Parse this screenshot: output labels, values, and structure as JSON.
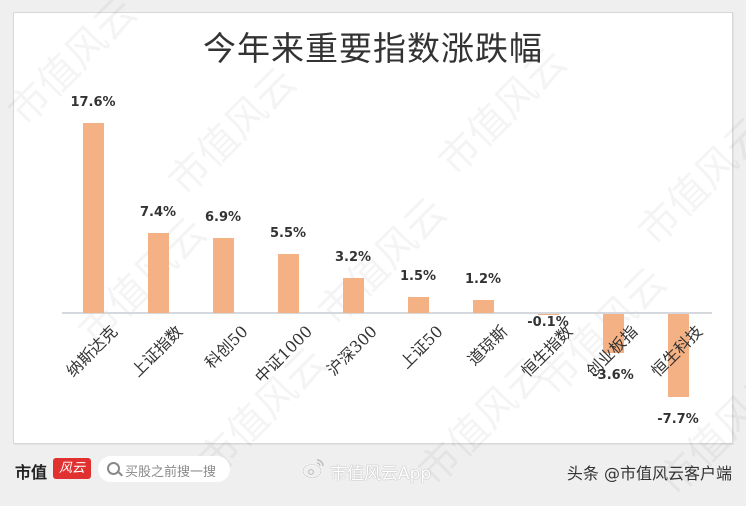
{
  "chart_data": {
    "type": "bar",
    "title": "今年来重要指数涨跌幅",
    "xlabel": "",
    "ylabel": "",
    "categories": [
      "纳斯达克",
      "上证指数",
      "科创50",
      "中证1000",
      "沪深300",
      "上证50",
      "道琼斯",
      "恒生指数",
      "创业板指",
      "恒生科技"
    ],
    "values": [
      17.6,
      7.4,
      6.9,
      5.5,
      3.2,
      1.5,
      1.2,
      -0.1,
      -3.6,
      -7.7
    ],
    "value_labels": [
      "17.6%",
      "7.4%",
      "6.9%",
      "5.5%",
      "3.2%",
      "1.5%",
      "1.2%",
      "-0.1%",
      "-3.6%",
      "-7.7%"
    ],
    "unit": "%",
    "bar_color": "#f4b183",
    "grid": false,
    "legend": null,
    "ylim": [
      -8,
      18
    ]
  },
  "watermark": "市值风云",
  "footer": {
    "brand": "市值",
    "brand_logo": "风云",
    "search_placeholder": "买股之前搜一搜",
    "weibo": "市值风云App",
    "toutiao": "头条 @市值风云客户端"
  }
}
